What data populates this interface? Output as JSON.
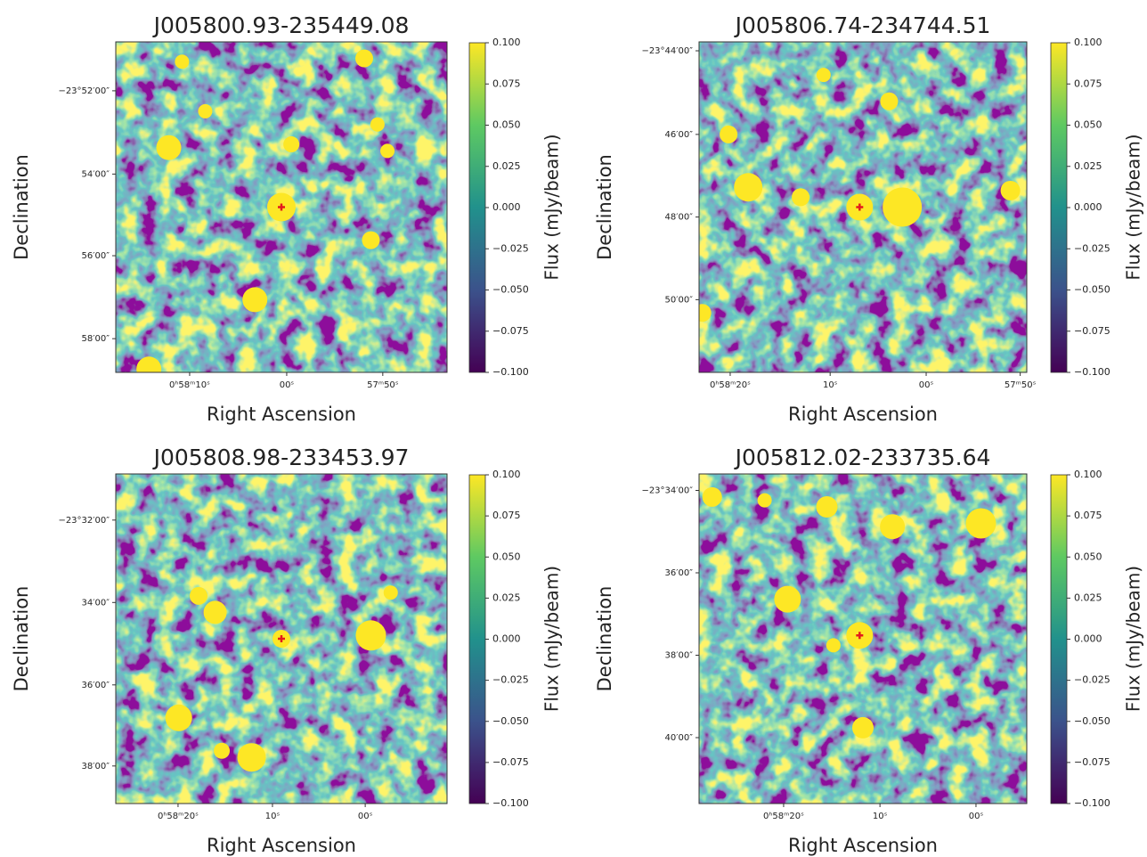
{
  "chart_data": [
    {
      "type": "image",
      "title": "J005800.93-235449.08",
      "xlabel": "Right Ascension",
      "ylabel": "Declination",
      "xticks": [
        "0ʰ58ᵐ10ˢ",
        "00ˢ",
        "57ᵐ50ˢ"
      ],
      "yticks": [
        "−23°52′00″",
        "54′00″",
        "56′00″",
        "58′00″"
      ],
      "colorbar": {
        "label": "Flux (mJy/beam)",
        "lim": [
          -0.1,
          0.1
        ],
        "ticks": [
          {
            "value": -0.1,
            "label": "−0.100"
          },
          {
            "value": -0.075,
            "label": "−0.075"
          },
          {
            "value": -0.05,
            "label": "−0.050"
          },
          {
            "value": -0.025,
            "label": "−0.025"
          },
          {
            "value": 0,
            "label": "0.000"
          },
          0.025,
          {
            "value": 0.05,
            "label": "0.050"
          },
          0.075,
          {
            "value": 0.1,
            "label": "0.100"
          }
        ]
      }
    },
    {
      "type": "image",
      "title": "J005806.74-234744.51",
      "xlabel": "Right Ascension",
      "ylabel": "Declination",
      "xticks": [
        "0ʰ58ᵐ20ˢ",
        "10ˢ",
        "00ˢ",
        "57ᵐ50ˢ"
      ],
      "yticks": [
        "−23°44′00″",
        "46′00″",
        "48′00″",
        "50′00″"
      ],
      "colorbar": {
        "label": "Flux (mJy/beam)",
        "lim": [
          -0.1,
          0.1
        ],
        "ticks": [
          {
            "value": -0.1,
            "label": "−0.100"
          },
          {
            "value": -0.075,
            "label": "−0.075"
          },
          {
            "value": -0.05,
            "label": "−0.050"
          },
          {
            "value": -0.025,
            "label": "−0.025"
          },
          {
            "value": 0,
            "label": "0.000"
          },
          0.025,
          {
            "value": 0.05,
            "label": "0.050"
          },
          0.075,
          {
            "value": 0.1,
            "label": "0.100"
          }
        ]
      }
    },
    {
      "type": "image",
      "title": "J005808.98-233453.97",
      "xlabel": "Right Ascension",
      "ylabel": "Declination",
      "xticks": [
        "0ʰ58ᵐ20ˢ",
        "10ˢ",
        "00ˢ"
      ],
      "yticks": [
        "−23°32′00″",
        "34′00″",
        "36′00″",
        "38′00″"
      ],
      "colorbar": {
        "label": "Flux (mJy/beam)",
        "lim": [
          -0.1,
          0.1
        ],
        "ticks": [
          {
            "value": -0.1,
            "label": "−0.100"
          },
          {
            "value": -0.075,
            "label": "−0.075"
          },
          {
            "value": -0.05,
            "label": "−0.050"
          },
          {
            "value": -0.025,
            "label": "−0.025"
          },
          {
            "value": 0,
            "label": "0.000"
          },
          0.025,
          {
            "value": 0.05,
            "label": "0.050"
          },
          0.075,
          {
            "value": 0.1,
            "label": "0.100"
          }
        ]
      }
    },
    {
      "type": "image",
      "title": "J005812.02-233735.64",
      "xlabel": "Right Ascension",
      "ylabel": "Declination",
      "xticks": [
        "0ʰ58ᵐ20ˢ",
        "10ˢ",
        "00ˢ"
      ],
      "yticks": [
        "−23°34′00″",
        "36′00″",
        "38′00″",
        "40′00″"
      ],
      "colorbar": {
        "label": "Flux (mJy/beam)",
        "lim": [
          -0.1,
          0.1
        ],
        "ticks": [
          {
            "value": -0.1,
            "label": "−0.100"
          },
          {
            "value": -0.075,
            "label": "−0.075"
          },
          {
            "value": -0.05,
            "label": "−0.050"
          },
          {
            "value": -0.025,
            "label": "−0.025"
          },
          {
            "value": 0,
            "label": "0.000"
          },
          0.025,
          {
            "value": 0.05,
            "label": "0.050"
          },
          0.075,
          {
            "value": 0.1,
            "label": "0.100"
          }
        ]
      }
    }
  ]
}
